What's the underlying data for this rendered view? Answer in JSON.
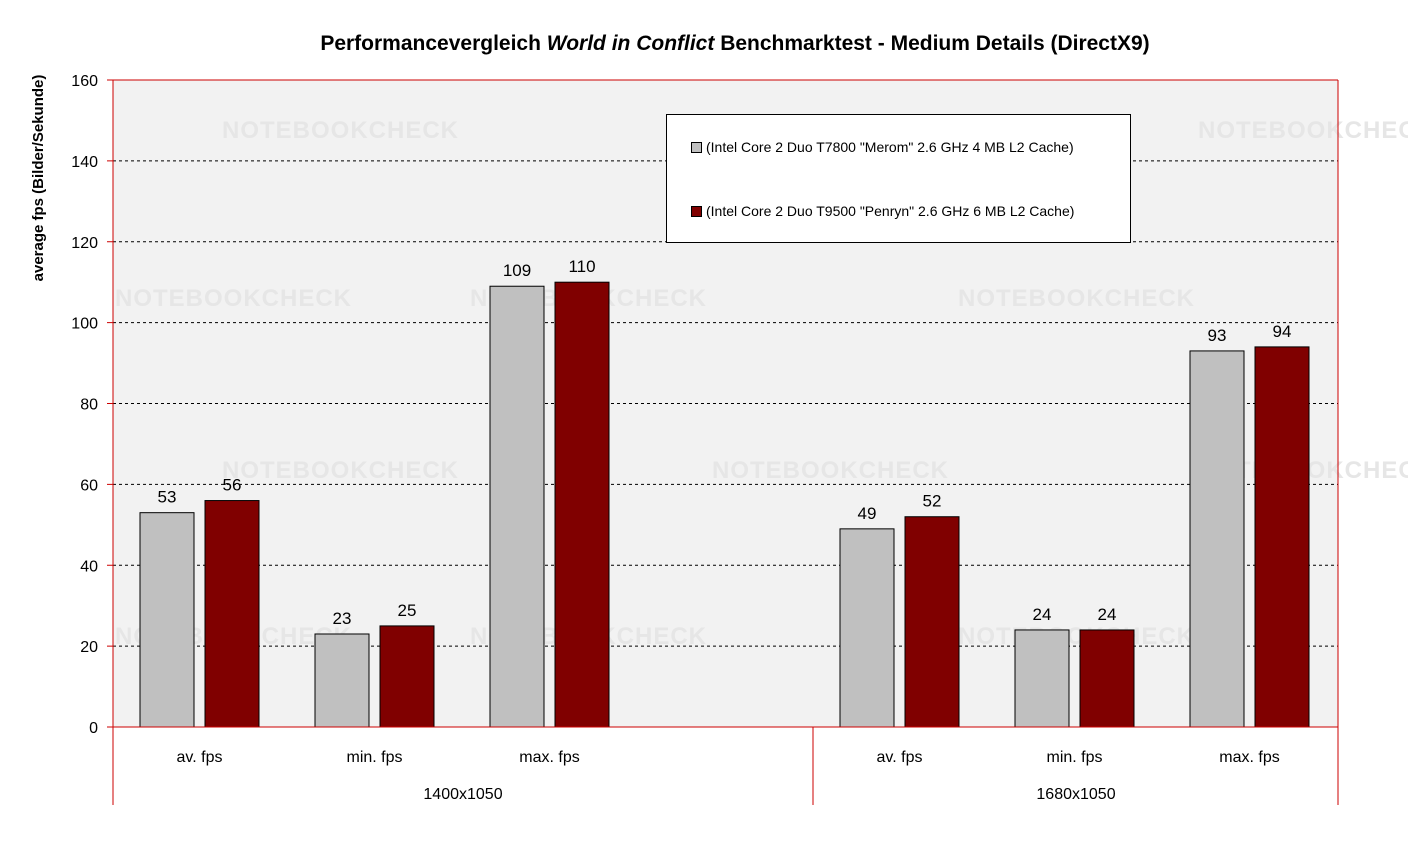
{
  "chart_data": {
    "type": "bar",
    "title_parts": [
      "Performancevergleich ",
      "World in Conflict",
      " Benchmarktest -  Medium Details (DirectX9)"
    ],
    "ylabel": "average fps (Bilder/Sekunde)",
    "ylim": [
      0,
      160
    ],
    "yticks": [
      0,
      20,
      40,
      60,
      80,
      100,
      120,
      140,
      160
    ],
    "grid": true,
    "legend_position": "top-right",
    "groups": [
      "1400x1050",
      "1680x1050"
    ],
    "categories": [
      "av. fps",
      "min. fps",
      "max. fps",
      "av. fps",
      "min. fps",
      "max. fps"
    ],
    "series": [
      {
        "name": "(Intel Core 2 Duo T7800 \"Merom\" 2.6 GHz 4 MB L2 Cache)",
        "color": "#c0c0c0",
        "values": [
          53,
          23,
          109,
          49,
          24,
          93
        ]
      },
      {
        "name": "(Intel Core 2 Duo T9500 \"Penryn\" 2.6 GHz 6 MB L2 Cache)",
        "color": "#800000",
        "values": [
          56,
          25,
          110,
          52,
          24,
          94
        ]
      }
    ],
    "watermark": "NOTEBOOKCHECK"
  },
  "colors": {
    "plot_background": "#f2f2f2",
    "axis": "#cc0000",
    "grid": "#000000"
  }
}
